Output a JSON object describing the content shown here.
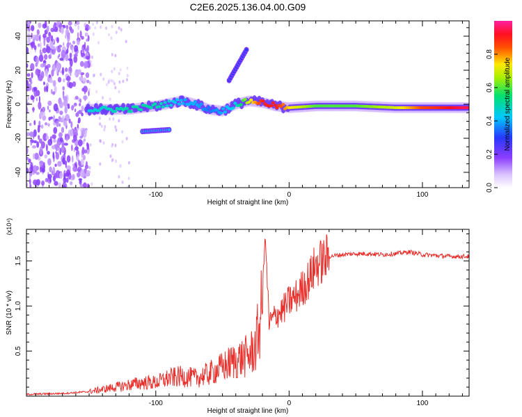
{
  "title": "C2E6.2025.136.04.00.G09",
  "colors": {
    "snr_line": "#e8302c",
    "axis": "#000000",
    "background": "#ffffff"
  },
  "chart_data": [
    {
      "type": "heatmap",
      "xlabel": "Height of straight line (km)",
      "ylabel": "Frequency (Hz)",
      "xlim": [
        -197,
        135
      ],
      "ylim": [
        -49,
        49
      ],
      "x_ticks": [
        -100,
        0,
        100
      ],
      "y_ticks": [
        40,
        20,
        0,
        -20,
        -40
      ],
      "colorbar": {
        "label": "Normalized spectral amplitude",
        "range": [
          0,
          1
        ],
        "ticks": [
          0.0,
          0.2,
          0.4,
          0.6,
          0.8
        ],
        "colormap": "rainbow (purple-blue-cyan-green-yellow-red-magenta)"
      },
      "ridge": {
        "description": "dominant frequency track",
        "x": [
          -150,
          -120,
          -100,
          -80,
          -70,
          -60,
          -50,
          -40,
          -30,
          -20,
          -10,
          0,
          20,
          50,
          80,
          100,
          130
        ],
        "y": [
          -3,
          -3,
          -1,
          2,
          0,
          -3,
          -4,
          0,
          2,
          1,
          -1,
          -2,
          -1,
          -1,
          -2,
          -2,
          -2
        ],
        "amplitude": [
          0.45,
          0.5,
          0.5,
          0.4,
          0.4,
          0.35,
          0.4,
          0.45,
          0.7,
          0.9,
          0.9,
          0.75,
          0.6,
          0.6,
          0.7,
          0.85,
          0.95
        ]
      },
      "secondary_tracks": [
        {
          "x": [
            -110,
            -90
          ],
          "y": [
            -16,
            -15
          ],
          "amplitude": 0.4
        },
        {
          "x": [
            -45,
            -32
          ],
          "y": [
            14,
            32
          ],
          "amplitude": 0.3
        }
      ]
    },
    {
      "type": "line",
      "xlabel": "Height of straight line (km)",
      "ylabel": "SNR (10 * v/v)",
      "y_multiplier_label": "(x10⁴)",
      "xlim": [
        -197,
        135
      ],
      "ylim": [
        0,
        1.85
      ],
      "x_ticks": [
        -100,
        0,
        100
      ],
      "y_ticks": [
        0.5,
        1.0,
        1.5
      ],
      "series": [
        {
          "x": [
            -197,
            -170,
            -150,
            -130,
            -110,
            -100,
            -90,
            -80,
            -70,
            -60,
            -50,
            -40,
            -30,
            -25,
            -20,
            -18,
            -15,
            -10,
            -5,
            0,
            5,
            10,
            15,
            20,
            25,
            30,
            40,
            50,
            60,
            70,
            80,
            90,
            100,
            110,
            120,
            135
          ],
          "y": [
            0.02,
            0.03,
            0.05,
            0.1,
            0.15,
            0.15,
            0.2,
            0.22,
            0.2,
            0.25,
            0.32,
            0.4,
            0.45,
            0.55,
            1.0,
            1.8,
            0.8,
            0.9,
            0.95,
            1.05,
            1.1,
            1.2,
            1.3,
            1.45,
            1.5,
            1.55,
            1.57,
            1.58,
            1.58,
            1.57,
            1.58,
            1.6,
            1.57,
            1.56,
            1.55,
            1.55
          ]
        }
      ]
    }
  ]
}
